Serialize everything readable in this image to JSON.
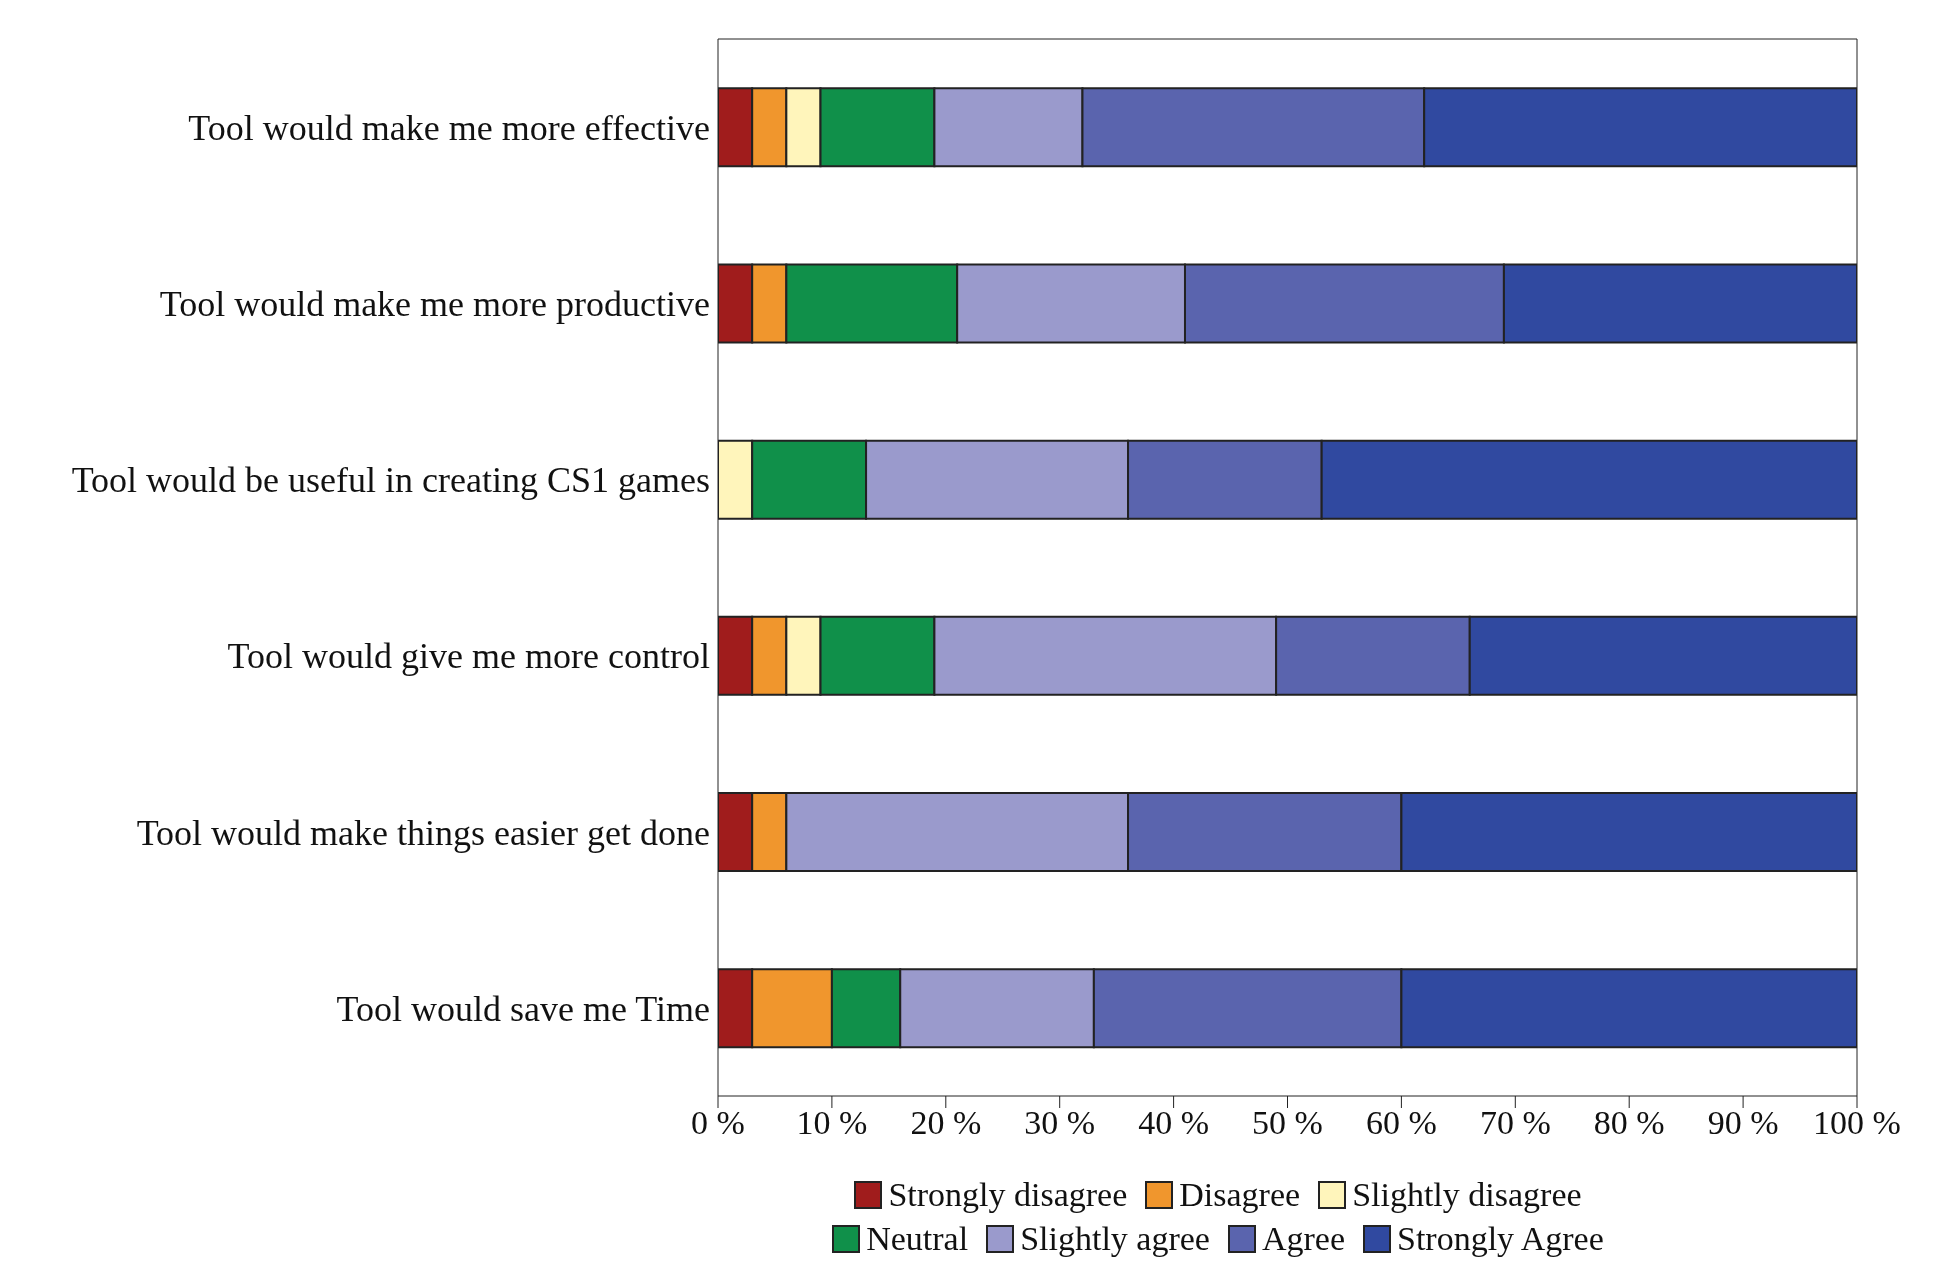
{
  "chart_data": {
    "type": "bar",
    "orientation": "horizontal",
    "stacked": true,
    "categories": [
      "Tool would make me more effective",
      "Tool would make me more productive",
      "Tool would be useful in creating CS1 games",
      "Tool would give me more control",
      "Tool would make things easier get done",
      "Tool would save me Time"
    ],
    "series": [
      {
        "name": "Strongly disagree",
        "color": "#a01c1c",
        "values": [
          3,
          3,
          0,
          3,
          3,
          3
        ]
      },
      {
        "name": "Disagree",
        "color": "#f0962d",
        "values": [
          3,
          3,
          0,
          3,
          3,
          7
        ]
      },
      {
        "name": "Slightly disagree",
        "color": "#fff5bb",
        "values": [
          3,
          0,
          3,
          3,
          0,
          0
        ]
      },
      {
        "name": "Neutral",
        "color": "#10904a",
        "values": [
          10,
          15,
          10,
          10,
          0,
          6
        ]
      },
      {
        "name": "Slightly agree",
        "color": "#9a9acc",
        "values": [
          13,
          20,
          23,
          30,
          30,
          17
        ]
      },
      {
        "name": "Agree",
        "color": "#5a64ae",
        "values": [
          30,
          28,
          17,
          17,
          24,
          27
        ]
      },
      {
        "name": "Strongly Agree",
        "color": "#3049a0",
        "values": [
          38,
          31,
          47,
          34,
          40,
          40
        ]
      }
    ],
    "xlim": [
      0,
      100
    ],
    "xticks": [
      {
        "value": 0,
        "label": "0 %"
      },
      {
        "value": 10,
        "label": "10 %"
      },
      {
        "value": 20,
        "label": "20 %"
      },
      {
        "value": 30,
        "label": "30 %"
      },
      {
        "value": 40,
        "label": "40 %"
      },
      {
        "value": 50,
        "label": "50 %"
      },
      {
        "value": 60,
        "label": "60 %"
      },
      {
        "value": 70,
        "label": "70 %"
      },
      {
        "value": 80,
        "label": "80 %"
      },
      {
        "value": 90,
        "label": "90 %"
      },
      {
        "value": 100,
        "label": "100 %"
      }
    ],
    "legend": "bottom"
  }
}
